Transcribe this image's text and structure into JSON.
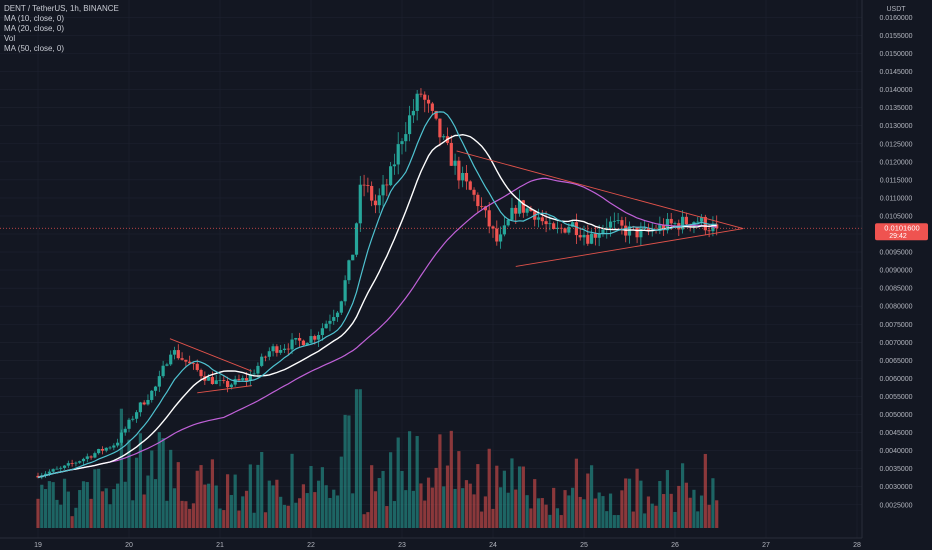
{
  "legend": {
    "symbol_line": "DENT / TetherUS, 1h, BINANCE",
    "ma10": "MA (10, close, 0)",
    "ma20": "MA (20, close, 0)",
    "vol": "Vol",
    "ma50": "MA (50, close, 0)"
  },
  "price_axis": {
    "currency": "USDT",
    "ticks": [
      "0.0160000",
      "0.0155000",
      "0.0150000",
      "0.0145000",
      "0.0140000",
      "0.0135000",
      "0.0130000",
      "0.0125000",
      "0.0120000",
      "0.0115000",
      "0.0110000",
      "0.0105000",
      "0.0100000",
      "0.0095000",
      "0.0090000",
      "0.0085000",
      "0.0080000",
      "0.0075000",
      "0.0070000",
      "0.0065000",
      "0.0060000",
      "0.0055000",
      "0.0050000",
      "0.0045000",
      "0.0040000",
      "0.0035000",
      "0.0030000",
      "0.0025000"
    ],
    "last_price": "0.0101600",
    "countdown": "29:42"
  },
  "time_axis": {
    "labels": [
      "19",
      "20",
      "21",
      "22",
      "23",
      "24",
      "25",
      "26",
      "27",
      "28"
    ]
  },
  "colors": {
    "background": "#131722",
    "up": "#26a69a",
    "down": "#ef5350",
    "ma10": "#4fc3d1",
    "ma20": "#ffffff",
    "ma50": "#c061d8",
    "trendline": "#e0524a",
    "grid": "#1e2230",
    "axis_text": "#b2b5be",
    "price_label_bg": "#ef5350"
  },
  "chart_data": {
    "type": "candlestick",
    "symbol": "DENT / TetherUS",
    "interval": "1h",
    "exchange": "BINANCE",
    "ylim": [
      0.0022,
      0.0162
    ],
    "price_keyframes": [
      [
        19.0,
        0.0033
      ],
      [
        19.3,
        0.0035
      ],
      [
        19.6,
        0.00385
      ],
      [
        19.9,
        0.0042
      ],
      [
        20.15,
        0.0052
      ],
      [
        20.35,
        0.0058
      ],
      [
        20.5,
        0.0068
      ],
      [
        20.7,
        0.0064
      ],
      [
        20.9,
        0.006
      ],
      [
        21.1,
        0.0058
      ],
      [
        21.35,
        0.006
      ],
      [
        21.6,
        0.0068
      ],
      [
        21.9,
        0.007
      ],
      [
        22.1,
        0.0072
      ],
      [
        22.35,
        0.008
      ],
      [
        22.5,
        0.0095
      ],
      [
        22.6,
        0.0115
      ],
      [
        22.75,
        0.0108
      ],
      [
        22.9,
        0.0115
      ],
      [
        23.05,
        0.0128
      ],
      [
        23.25,
        0.0139
      ],
      [
        23.5,
        0.0125
      ],
      [
        23.7,
        0.0115
      ],
      [
        23.9,
        0.0108
      ],
      [
        24.1,
        0.0097
      ],
      [
        24.3,
        0.0108
      ],
      [
        24.5,
        0.0106
      ],
      [
        24.7,
        0.01
      ],
      [
        24.9,
        0.0103
      ],
      [
        25.1,
        0.0099
      ],
      [
        25.3,
        0.0103
      ],
      [
        25.5,
        0.0101
      ],
      [
        25.7,
        0.01
      ],
      [
        25.9,
        0.0102
      ],
      [
        26.1,
        0.0103
      ],
      [
        26.28,
        0.0104
      ],
      [
        26.45,
        0.01016
      ]
    ],
    "last_price": 0.01016,
    "trendlines": [
      {
        "from": [
          20.45,
          0.0071
        ],
        "to": [
          21.35,
          0.0062
        ]
      },
      {
        "from": [
          20.75,
          0.0056
        ],
        "to": [
          21.35,
          0.0058
        ]
      },
      {
        "from": [
          23.6,
          0.0123
        ],
        "to": [
          26.75,
          0.01015
        ]
      },
      {
        "from": [
          24.25,
          0.0091
        ],
        "to": [
          26.75,
          0.01015
        ]
      }
    ],
    "volume_range": [
      0,
      0.0057
    ]
  }
}
